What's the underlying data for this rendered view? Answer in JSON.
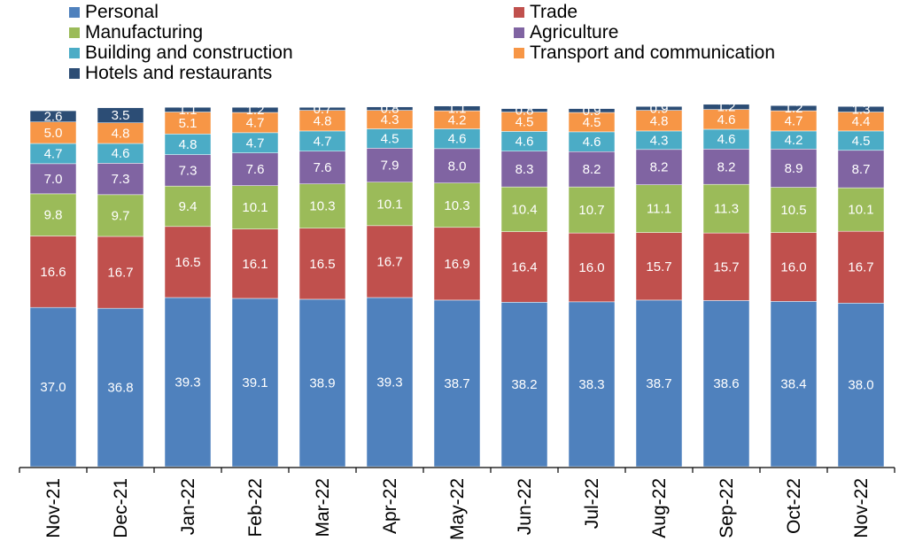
{
  "chart_data": {
    "type": "bar",
    "stacked": true,
    "title": "",
    "xlabel": "",
    "ylabel": "",
    "legend_position": "top",
    "grid": false,
    "categories": [
      "Nov-21",
      "Dec-21",
      "Jan-22",
      "Feb-22",
      "Mar-22",
      "Apr-22",
      "May-22",
      "Jun-22",
      "Jul-22",
      "Aug-22",
      "Sep-22",
      "Oct-22",
      "Nov-22"
    ],
    "series": [
      {
        "name": "Personal",
        "color": "#4f81bd",
        "values": [
          37.0,
          36.8,
          39.3,
          39.1,
          38.9,
          39.3,
          38.7,
          38.2,
          38.3,
          38.7,
          38.6,
          38.4,
          38.0
        ]
      },
      {
        "name": "Trade",
        "color": "#c0504d",
        "values": [
          16.6,
          16.7,
          16.5,
          16.1,
          16.5,
          16.7,
          16.9,
          16.4,
          16.0,
          15.7,
          15.7,
          16.0,
          16.7
        ]
      },
      {
        "name": "Manufacturing",
        "color": "#9bbb59",
        "values": [
          9.8,
          9.7,
          9.4,
          10.1,
          10.3,
          10.1,
          10.3,
          10.4,
          10.7,
          11.1,
          11.3,
          10.5,
          10.1
        ]
      },
      {
        "name": "Agriculture",
        "color": "#8064a2",
        "values": [
          7.0,
          7.3,
          7.3,
          7.6,
          7.6,
          7.9,
          8.0,
          8.3,
          8.2,
          8.2,
          8.2,
          8.9,
          8.7
        ]
      },
      {
        "name": "Building and construction",
        "color": "#4bacc6",
        "values": [
          4.7,
          4.6,
          4.8,
          4.7,
          4.7,
          4.5,
          4.6,
          4.6,
          4.6,
          4.3,
          4.6,
          4.2,
          4.5
        ]
      },
      {
        "name": "Transport and communication",
        "color": "#f79646",
        "values": [
          5.0,
          4.8,
          5.1,
          4.7,
          4.8,
          4.3,
          4.2,
          4.5,
          4.5,
          4.8,
          4.6,
          4.7,
          4.4
        ]
      },
      {
        "name": "Hotels and restaurants",
        "color": "#2c4d75",
        "values": [
          2.6,
          3.5,
          1.1,
          1.2,
          0.7,
          0.8,
          1.1,
          0.8,
          0.9,
          0.9,
          1.2,
          1.2,
          1.3
        ]
      }
    ]
  }
}
